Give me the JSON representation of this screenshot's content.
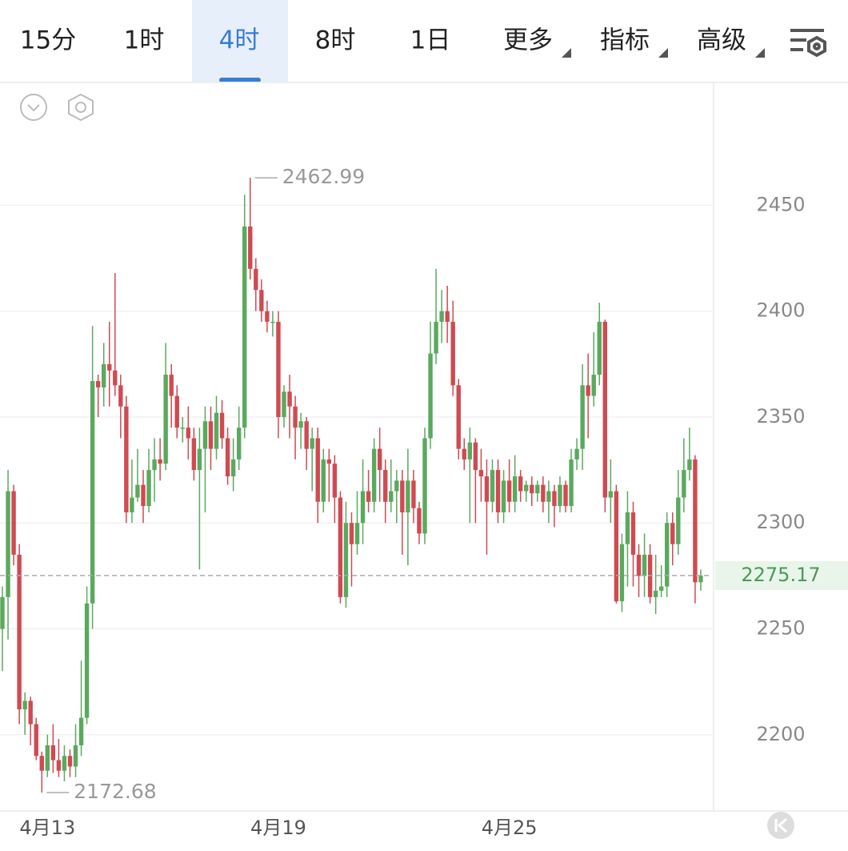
{
  "tabs": [
    "15分",
    "1时",
    "4时",
    "8时",
    "1日",
    "更多",
    "指标",
    "高级"
  ],
  "chart_data": {
    "type": "candlestick",
    "categories": [
      null,
      null,
      null,
      null,
      null,
      null,
      null,
      null,
      "4月13",
      null,
      null,
      null,
      null,
      null,
      null,
      null,
      null,
      null,
      null,
      null,
      null,
      null,
      null,
      null,
      null,
      null,
      null,
      null,
      null,
      null,
      null,
      null,
      null,
      null,
      null,
      null,
      null,
      null,
      null,
      null,
      null,
      null,
      null,
      null,
      null,
      null,
      null,
      null,
      null,
      "4月19",
      null,
      null,
      null,
      null,
      null,
      null,
      null,
      null,
      null,
      null,
      null,
      null,
      null,
      null,
      null,
      null,
      null,
      null,
      null,
      null,
      null,
      null,
      null,
      null,
      null,
      null,
      null,
      null,
      null,
      null,
      null,
      null,
      null,
      null,
      null,
      null,
      null,
      null,
      null,
      null,
      "4月25",
      null,
      null,
      null,
      null,
      null,
      null,
      null,
      null,
      null,
      null,
      null,
      null,
      null,
      null,
      null,
      null,
      null,
      null,
      null,
      null,
      null,
      null,
      null,
      null,
      null,
      null,
      null,
      null,
      null,
      null,
      null,
      null,
      null,
      null
    ],
    "open": [
      2250,
      2265,
      2315,
      2285,
      2212,
      2216,
      2205,
      2190,
      2183,
      2195,
      2188,
      2183,
      2190,
      2185,
      2195,
      2208,
      2262,
      2367,
      2364,
      2375,
      2372,
      2365,
      2355,
      2305,
      2312,
      2318,
      2308,
      2325,
      2330,
      2328,
      2370,
      2360,
      2345,
      2345,
      2340,
      2325,
      2335,
      2348,
      2335,
      2352,
      2340,
      2322,
      2330,
      2345,
      2440,
      2420,
      2410,
      2400,
      2395,
      2395,
      2350,
      2362,
      2355,
      2345,
      2348,
      2335,
      2340,
      2310,
      2330,
      2328,
      2312,
      2265,
      2300,
      2290,
      2300,
      2315,
      2310,
      2335,
      2325,
      2310,
      2315,
      2320,
      2305,
      2320,
      2307,
      2295,
      2340,
      2380,
      2395,
      2400,
      2395,
      2365,
      2335,
      2330,
      2338,
      2325,
      2322,
      2310,
      2325,
      2305,
      2320,
      2310,
      2322,
      2315,
      2318,
      2314,
      2318,
      2310,
      2315,
      2308,
      2318,
      2308,
      2330,
      2335,
      2365,
      2360,
      2370,
      2395,
      2312,
      2315,
      2263,
      2290,
      2305,
      2285,
      2275,
      2285,
      2265,
      2268,
      2270,
      2300,
      2290,
      2312,
      2325,
      2330,
      2272
    ],
    "high": [
      2270,
      2325,
      2318,
      2290,
      2220,
      2218,
      2208,
      2192,
      2200,
      2205,
      2198,
      2195,
      2193,
      2205,
      2235,
      2270,
      2393,
      2370,
      2385,
      2395,
      2418,
      2370,
      2360,
      2330,
      2335,
      2325,
      2335,
      2340,
      2340,
      2385,
      2375,
      2365,
      2350,
      2355,
      2345,
      2345,
      2355,
      2355,
      2360,
      2358,
      2345,
      2340,
      2355,
      2455,
      2462.99,
      2425,
      2415,
      2405,
      2400,
      2400,
      2365,
      2370,
      2360,
      2352,
      2350,
      2345,
      2345,
      2335,
      2335,
      2332,
      2315,
      2310,
      2305,
      2315,
      2330,
      2325,
      2340,
      2345,
      2330,
      2330,
      2325,
      2325,
      2335,
      2325,
      2310,
      2345,
      2395,
      2420,
      2410,
      2412,
      2405,
      2368,
      2340,
      2345,
      2340,
      2335,
      2330,
      2330,
      2330,
      2325,
      2330,
      2332,
      2325,
      2320,
      2322,
      2320,
      2322,
      2320,
      2318,
      2322,
      2320,
      2335,
      2340,
      2375,
      2380,
      2390,
      2404,
      2396,
      2330,
      2318,
      2295,
      2315,
      2310,
      2290,
      2295,
      2290,
      2285,
      2280,
      2305,
      2305,
      2325,
      2340,
      2345,
      2332,
      2278
    ],
    "low": [
      2230,
      2245,
      2280,
      2205,
      2200,
      2195,
      2188,
      2172.68,
      2180,
      2182,
      2180,
      2178,
      2180,
      2180,
      2190,
      2205,
      2250,
      2350,
      2355,
      2355,
      2360,
      2340,
      2300,
      2300,
      2310,
      2300,
      2305,
      2310,
      2320,
      2325,
      2345,
      2340,
      2338,
      2330,
      2320,
      2278,
      2305,
      2325,
      2330,
      2335,
      2318,
      2315,
      2325,
      2340,
      2415,
      2400,
      2395,
      2390,
      2388,
      2340,
      2345,
      2340,
      2330,
      2335,
      2325,
      2315,
      2300,
      2305,
      2310,
      2300,
      2262,
      2260,
      2270,
      2285,
      2290,
      2305,
      2305,
      2310,
      2300,
      2305,
      2300,
      2285,
      2280,
      2300,
      2290,
      2290,
      2335,
      2375,
      2385,
      2385,
      2360,
      2330,
      2325,
      2300,
      2300,
      2310,
      2285,
      2305,
      2300,
      2300,
      2305,
      2305,
      2310,
      2310,
      2308,
      2310,
      2305,
      2300,
      2298,
      2305,
      2305,
      2305,
      2325,
      2325,
      2340,
      2355,
      2365,
      2305,
      2300,
      2262,
      2258,
      2270,
      2270,
      2265,
      2265,
      2262,
      2257,
      2265,
      2265,
      2280,
      2285,
      2305,
      2320,
      2262,
      2268
    ],
    "close": [
      2265,
      2315,
      2285,
      2212,
      2216,
      2205,
      2190,
      2183,
      2195,
      2188,
      2183,
      2190,
      2185,
      2195,
      2208,
      2262,
      2367,
      2364,
      2375,
      2372,
      2365,
      2355,
      2305,
      2312,
      2318,
      2308,
      2325,
      2330,
      2328,
      2370,
      2360,
      2345,
      2345,
      2340,
      2325,
      2335,
      2348,
      2335,
      2352,
      2340,
      2322,
      2330,
      2345,
      2440,
      2420,
      2410,
      2400,
      2395,
      2395,
      2350,
      2362,
      2355,
      2345,
      2348,
      2335,
      2340,
      2310,
      2330,
      2328,
      2312,
      2265,
      2300,
      2290,
      2300,
      2315,
      2310,
      2335,
      2325,
      2310,
      2315,
      2320,
      2305,
      2320,
      2307,
      2295,
      2340,
      2380,
      2395,
      2400,
      2395,
      2365,
      2335,
      2330,
      2338,
      2325,
      2322,
      2310,
      2325,
      2305,
      2320,
      2310,
      2322,
      2315,
      2318,
      2314,
      2318,
      2310,
      2315,
      2308,
      2318,
      2308,
      2330,
      2335,
      2365,
      2360,
      2370,
      2395,
      2312,
      2315,
      2263,
      2290,
      2305,
      2285,
      2275,
      2285,
      2265,
      2268,
      2270,
      2300,
      2290,
      2312,
      2325,
      2330,
      2272,
      2275.17
    ],
    "up_color": "#5aa95e",
    "down_color": "#cf4a52",
    "ylim": [
      2164,
      2508
    ],
    "yticks": [
      2200,
      2250,
      2300,
      2350,
      2400,
      2450
    ],
    "grid": true,
    "max_label": 2462.99,
    "min_label": 2172.68,
    "last_price": 2275.17
  }
}
